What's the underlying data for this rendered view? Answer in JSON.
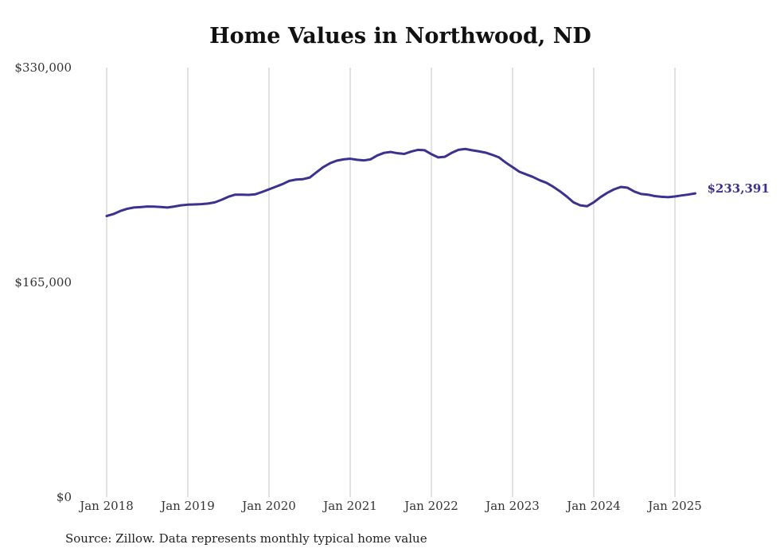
{
  "chart_data": {
    "type": "line",
    "title": "Home Values in Northwood, ND",
    "source": "Source: Zillow. Data represents monthly typical home value",
    "ylim": [
      0,
      330000
    ],
    "yticks": [
      0,
      165000,
      330000
    ],
    "ytick_labels": [
      "$0",
      "$165,000",
      "$330,000"
    ],
    "xticks": [
      "2018-01",
      "2019-01",
      "2020-01",
      "2021-01",
      "2022-01",
      "2023-01",
      "2024-01",
      "2025-01"
    ],
    "xtick_labels": [
      "Jan 2018",
      "Jan 2019",
      "Jan 2020",
      "Jan 2021",
      "Jan 2022",
      "Jan 2023",
      "Jan 2024",
      "Jan 2025"
    ],
    "x_range": [
      "2018-01",
      "2025-04"
    ],
    "grid": "vertical",
    "line_color": "#3b318f",
    "end_label": "$233,391",
    "series": [
      {
        "x": [
          "2018-01",
          "2018-02",
          "2018-03",
          "2018-04",
          "2018-05",
          "2018-06",
          "2018-07",
          "2018-08",
          "2018-09",
          "2018-10",
          "2018-11",
          "2018-12",
          "2019-01",
          "2019-02",
          "2019-03",
          "2019-04",
          "2019-05",
          "2019-06",
          "2019-07",
          "2019-08",
          "2019-09",
          "2019-10",
          "2019-11",
          "2019-12",
          "2020-01",
          "2020-02",
          "2020-03",
          "2020-04",
          "2020-05",
          "2020-06",
          "2020-07",
          "2020-08",
          "2020-09",
          "2020-10",
          "2020-11",
          "2020-12",
          "2021-01",
          "2021-02",
          "2021-03",
          "2021-04",
          "2021-05",
          "2021-06",
          "2021-07",
          "2021-08",
          "2021-09",
          "2021-10",
          "2021-11",
          "2021-12",
          "2022-01",
          "2022-02",
          "2022-03",
          "2022-04",
          "2022-05",
          "2022-06",
          "2022-07",
          "2022-08",
          "2022-09",
          "2022-10",
          "2022-11",
          "2022-12",
          "2023-01",
          "2023-02",
          "2023-03",
          "2023-04",
          "2023-05",
          "2023-06",
          "2023-07",
          "2023-08",
          "2023-09",
          "2023-10",
          "2023-11",
          "2023-12",
          "2024-01",
          "2024-02",
          "2024-03",
          "2024-04",
          "2024-05",
          "2024-06",
          "2024-07",
          "2024-08",
          "2024-09",
          "2024-10",
          "2024-11",
          "2024-12",
          "2025-01",
          "2025-02",
          "2025-03",
          "2025-04"
        ],
        "values": [
          216000,
          217500,
          219800,
          221500,
          222500,
          222800,
          223300,
          223200,
          222900,
          222500,
          223300,
          224200,
          224700,
          224900,
          225100,
          225600,
          226500,
          228500,
          230800,
          232400,
          232400,
          232200,
          232700,
          234500,
          236500,
          238500,
          240500,
          243000,
          244000,
          244300,
          245500,
          249500,
          253500,
          256500,
          258500,
          259500,
          260000,
          259200,
          258700,
          259500,
          262500,
          264500,
          265200,
          264200,
          263700,
          265500,
          266800,
          266500,
          263500,
          261000,
          261500,
          264500,
          266800,
          267500,
          266500,
          265700,
          264700,
          263000,
          261000,
          257000,
          253500,
          250000,
          248000,
          246000,
          243500,
          241500,
          238500,
          235000,
          231000,
          226500,
          224200,
          223500,
          226500,
          230500,
          233800,
          236500,
          238300,
          237700,
          234800,
          232900,
          232400,
          231300,
          230800,
          230500,
          231000,
          231800,
          232500,
          233391
        ]
      }
    ]
  }
}
